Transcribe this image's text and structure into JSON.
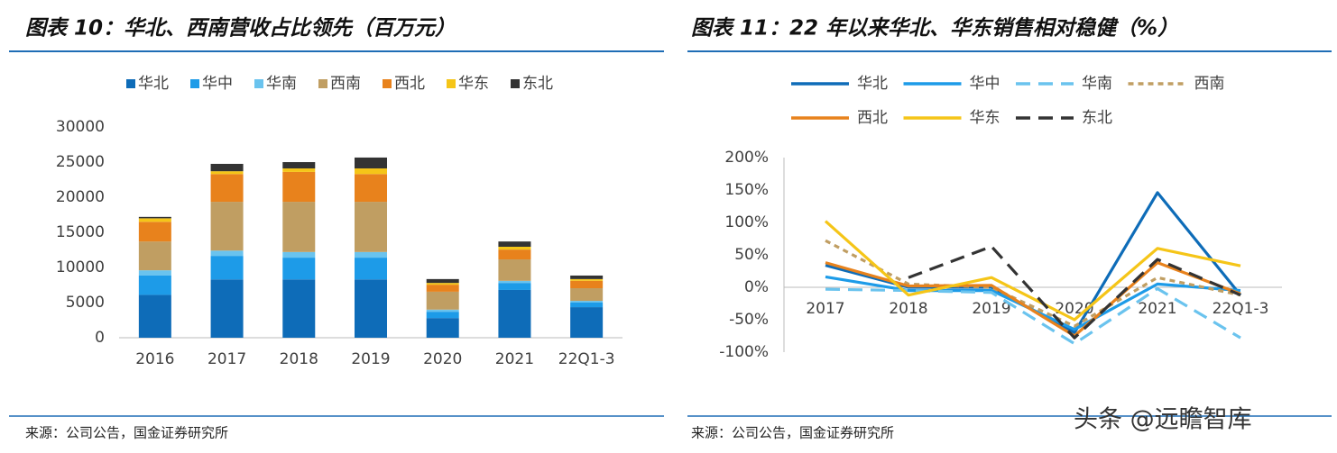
{
  "chart_data": [
    {
      "type": "bar",
      "stacked": true,
      "title": "图表 10：华北、西南营收占比领先（百万元）",
      "source": "来源：公司公告，国金证券研究所",
      "categories": [
        "2016",
        "2017",
        "2018",
        "2019",
        "2020",
        "2021",
        "22Q1-3"
      ],
      "series": [
        {
          "name": "华北",
          "color": "#0e6cb8",
          "values": [
            6100,
            8300,
            8300,
            8300,
            2800,
            6800,
            4350
          ]
        },
        {
          "name": "华中",
          "color": "#1d9be8",
          "values": [
            2750,
            3350,
            3100,
            3100,
            900,
            1000,
            650
          ]
        },
        {
          "name": "华南",
          "color": "#6ac3ee",
          "values": [
            750,
            750,
            800,
            800,
            300,
            300,
            250
          ]
        },
        {
          "name": "西南",
          "color": "#c09e62",
          "values": [
            4100,
            6950,
            7150,
            7150,
            2550,
            3050,
            1800
          ]
        },
        {
          "name": "西北",
          "color": "#e8821c",
          "values": [
            2800,
            3950,
            4250,
            3950,
            1000,
            1400,
            1050
          ]
        },
        {
          "name": "华东",
          "color": "#f5c518",
          "values": [
            500,
            400,
            500,
            800,
            250,
            400,
            250
          ]
        },
        {
          "name": "东北",
          "color": "#333333",
          "values": [
            200,
            1050,
            900,
            1550,
            550,
            750,
            500
          ]
        }
      ],
      "ylim": [
        0,
        30000
      ],
      "yticks": [
        0,
        5000,
        10000,
        15000,
        20000,
        25000,
        30000
      ],
      "grid": false,
      "legend": "top"
    },
    {
      "type": "line",
      "title": "图表 11：22 年以来华北、华东销售相对稳健（%）",
      "source": "来源：公司公告，国金证券研究所",
      "categories": [
        "2017",
        "2018",
        "2019",
        "2020",
        "2021",
        "22Q1-3"
      ],
      "series": [
        {
          "name": "华北",
          "color": "#0e6cb8",
          "dash": "solid",
          "values": [
            34,
            0,
            0,
            -70,
            146,
            -12
          ]
        },
        {
          "name": "华中",
          "color": "#1d9be8",
          "dash": "solid",
          "values": [
            16,
            -5,
            -5,
            -65,
            5,
            -5
          ]
        },
        {
          "name": "华南",
          "color": "#6ac3ee",
          "dash": "dashed",
          "values": [
            -3,
            -5,
            -8,
            -87,
            -2,
            -78
          ]
        },
        {
          "name": "西南",
          "color": "#c09e62",
          "dash": "dotted",
          "values": [
            72,
            5,
            0,
            -60,
            15,
            -12
          ]
        },
        {
          "name": "西北",
          "color": "#e8821c",
          "dash": "solid",
          "values": [
            38,
            2,
            3,
            -75,
            38,
            -10
          ]
        },
        {
          "name": "华东",
          "color": "#f5c518",
          "dash": "solid",
          "values": [
            102,
            -12,
            15,
            -50,
            60,
            33
          ]
        },
        {
          "name": "东北",
          "color": "#333333",
          "dash": "dashed",
          "values": [
            null,
            15,
            63,
            -78,
            43,
            -12
          ]
        }
      ],
      "ylim": [
        -100,
        200
      ],
      "yticks": [
        {
          "value": -100,
          "label": "-100%"
        },
        {
          "value": -50,
          "label": "-50%"
        },
        {
          "value": 0,
          "label": "0%"
        },
        {
          "value": 50,
          "label": "50%"
        },
        {
          "value": 100,
          "label": "100%"
        },
        {
          "value": 150,
          "label": "150%"
        },
        {
          "value": 200,
          "label": "200%"
        }
      ],
      "grid": false,
      "legend": "top"
    }
  ],
  "watermark": "头条 @远瞻智库"
}
